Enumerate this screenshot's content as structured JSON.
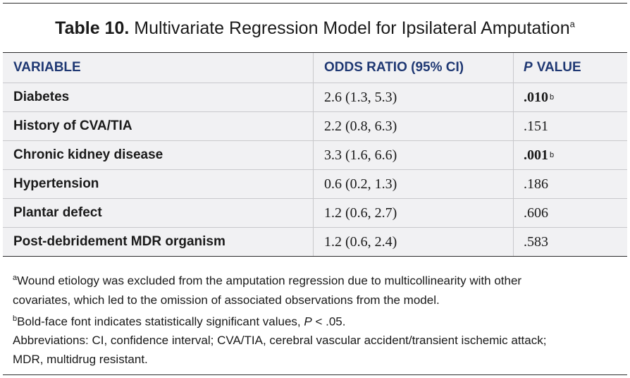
{
  "title": {
    "label": "Table 10.",
    "text": "Multivariate Regression Model for Ipsilateral Amputation",
    "note_marker": "a"
  },
  "table": {
    "headers": {
      "variable": "VARIABLE",
      "odds_ratio": "ODDS RATIO (95% CI)",
      "p_italic": "P",
      "p_rest": "VALUE"
    },
    "rows": [
      {
        "variable": "Diabetes",
        "odds_ratio": "2.6 (1.3, 5.3)",
        "p_value": ".010",
        "note": "b"
      },
      {
        "variable": "History of CVA/TIA",
        "odds_ratio": "2.2 (0.8, 6.3)",
        "p_value": ".151",
        "note": ""
      },
      {
        "variable": "Chronic kidney disease",
        "odds_ratio": "3.3 (1.6, 6.6)",
        "p_value": ".001",
        "note": "b"
      },
      {
        "variable": "Hypertension",
        "odds_ratio": "0.6 (0.2, 1.3)",
        "p_value": ".186",
        "note": ""
      },
      {
        "variable": "Plantar defect",
        "odds_ratio": "1.2 (0.6, 2.7)",
        "p_value": ".606",
        "note": ""
      },
      {
        "variable": "Post-debridement MDR organism",
        "odds_ratio": "1.2 (0.6, 2.4)",
        "p_value": ".583",
        "note": ""
      }
    ]
  },
  "notes": {
    "a_marker": "a",
    "a_line1": "Wound etiology was excluded from the amputation regression due to multicollinearity with other",
    "a_line2": "covariates, which led to the omission of associated observations from the model.",
    "b_marker": "b",
    "b_text": "Bold-face font indicates statistically significant values,",
    "b_p": "P",
    "b_end": "< .05.",
    "abbr_line1": "Abbreviations: CI, confidence interval; CVA/TIA, cerebral vascular accident/transient ischemic attack;",
    "abbr_line2": "MDR, multidrug resistant."
  },
  "colors": {
    "header_text": "#1f3873",
    "table_background": "#f1f1f3",
    "rule": "#2b2b2b"
  }
}
